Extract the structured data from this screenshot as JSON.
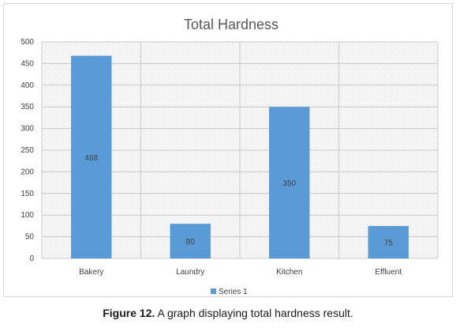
{
  "chart_data": {
    "type": "bar",
    "title": "Total Hardness",
    "categories": [
      "Bakery",
      "Laundry",
      "Kitchen",
      "Effluent"
    ],
    "series": [
      {
        "name": "Series 1",
        "values": [
          468,
          80,
          350,
          75
        ],
        "color": "#5b9bd5"
      }
    ],
    "data_labels": [
      "468",
      "80",
      "350",
      "75"
    ],
    "ylim": [
      0,
      500
    ],
    "yticks": [
      "0",
      "50",
      "100",
      "150",
      "200",
      "250",
      "300",
      "350",
      "400",
      "450",
      "500"
    ],
    "grid": true,
    "legend_position": "bottom"
  },
  "caption": {
    "label": "Figure 12.",
    "text": " A graph displaying total hardness result."
  }
}
